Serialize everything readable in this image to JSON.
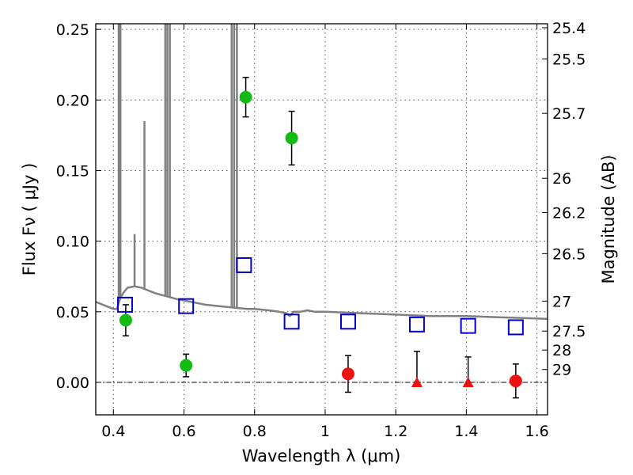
{
  "chart_data": {
    "type": "scatter",
    "xlabel": "Wavelength  λ (μm)",
    "ylabel": "Flux  Fν  ( μJy )",
    "y2label": "Magnitude (AB)",
    "xlim": [
      0.35,
      1.63
    ],
    "ylim": [
      -0.023,
      0.254
    ],
    "grid": true,
    "x_ticks": [
      0.4,
      0.6,
      0.8,
      1.0,
      1.2,
      1.4,
      1.6
    ],
    "x_tick_labels": [
      "0.4",
      "0.6",
      "0.8",
      "1",
      "1.2",
      "1.4",
      "1.6"
    ],
    "y_ticks": [
      0.0,
      0.05,
      0.1,
      0.15,
      0.2,
      0.25
    ],
    "y_tick_labels": [
      "0.00",
      "0.05",
      "0.10",
      "0.15",
      "0.20",
      "0.25"
    ],
    "y2_ticks": [
      {
        "label": "25.4",
        "value": 25.4
      },
      {
        "label": "25.5",
        "value": 25.5
      },
      {
        "label": "25.7",
        "value": 25.7
      },
      {
        "label": "26",
        "value": 26
      },
      {
        "label": "26.2",
        "value": 26.2
      },
      {
        "label": "26.5",
        "value": 26.5
      },
      {
        "label": "27",
        "value": 27
      },
      {
        "label": "27.5",
        "value": 27.5
      },
      {
        "label": "28",
        "value": 28
      },
      {
        "label": "29",
        "value": 29
      }
    ],
    "series": [
      {
        "kind": "detections",
        "color": "#11bb11",
        "points": [
          {
            "x": 0.435,
            "y": 0.044,
            "err": 0.011
          },
          {
            "x": 0.606,
            "y": 0.012,
            "err": 0.008
          },
          {
            "x": 0.775,
            "y": 0.202,
            "err": 0.014
          },
          {
            "x": 0.905,
            "y": 0.173,
            "err": 0.019
          }
        ]
      },
      {
        "kind": "low-significance",
        "color": "#ee1111",
        "points": [
          {
            "x": 1.065,
            "y": 0.006,
            "err": 0.013
          },
          {
            "x": 1.54,
            "y": 0.001,
            "err": 0.012
          }
        ]
      },
      {
        "kind": "upper-limits",
        "color": "#ee1111",
        "points": [
          {
            "x": 1.26,
            "y": 0.0,
            "up": 0.022
          },
          {
            "x": 1.405,
            "y": 0.0,
            "up": 0.018
          }
        ]
      },
      {
        "kind": "model-photometry",
        "color": "#0000cc",
        "points": [
          {
            "x": 0.433,
            "y": 0.055
          },
          {
            "x": 0.606,
            "y": 0.054
          },
          {
            "x": 0.77,
            "y": 0.083
          },
          {
            "x": 0.905,
            "y": 0.043
          },
          {
            "x": 1.065,
            "y": 0.043
          },
          {
            "x": 1.26,
            "y": 0.041
          },
          {
            "x": 1.405,
            "y": 0.04
          },
          {
            "x": 1.54,
            "y": 0.039
          }
        ]
      }
    ],
    "sed_model": {
      "color": "#808080",
      "continuum": [
        [
          0.35,
          0.057
        ],
        [
          0.38,
          0.054
        ],
        [
          0.4,
          0.052
        ],
        [
          0.41,
          0.052
        ],
        [
          0.42,
          0.06
        ],
        [
          0.43,
          0.064
        ],
        [
          0.44,
          0.067
        ],
        [
          0.46,
          0.068
        ],
        [
          0.48,
          0.067
        ],
        [
          0.5,
          0.065
        ],
        [
          0.52,
          0.063
        ],
        [
          0.55,
          0.061
        ],
        [
          0.58,
          0.059
        ],
        [
          0.62,
          0.057
        ],
        [
          0.66,
          0.055
        ],
        [
          0.7,
          0.054
        ],
        [
          0.74,
          0.053
        ],
        [
          0.78,
          0.052
        ],
        [
          0.8,
          0.052
        ],
        [
          0.84,
          0.051
        ],
        [
          0.87,
          0.05
        ],
        [
          0.89,
          0.049
        ],
        [
          0.9,
          0.047
        ],
        [
          0.91,
          0.05
        ],
        [
          0.93,
          0.05
        ],
        [
          0.95,
          0.051
        ],
        [
          0.97,
          0.05
        ],
        [
          1.0,
          0.05
        ],
        [
          1.1,
          0.049
        ],
        [
          1.2,
          0.048
        ],
        [
          1.3,
          0.047
        ],
        [
          1.4,
          0.047
        ],
        [
          1.5,
          0.046
        ],
        [
          1.63,
          0.045
        ]
      ],
      "emission_lines": [
        {
          "x": 0.415,
          "peak": 0.26
        },
        {
          "x": 0.42,
          "peak": 0.26
        },
        {
          "x": 0.46,
          "peak": 0.105
        },
        {
          "x": 0.488,
          "peak": 0.185
        },
        {
          "x": 0.547,
          "peak": 0.26
        },
        {
          "x": 0.553,
          "peak": 0.26
        },
        {
          "x": 0.56,
          "peak": 0.26
        },
        {
          "x": 0.735,
          "peak": 0.26
        },
        {
          "x": 0.742,
          "peak": 0.26
        },
        {
          "x": 0.75,
          "peak": 0.26
        }
      ]
    }
  }
}
